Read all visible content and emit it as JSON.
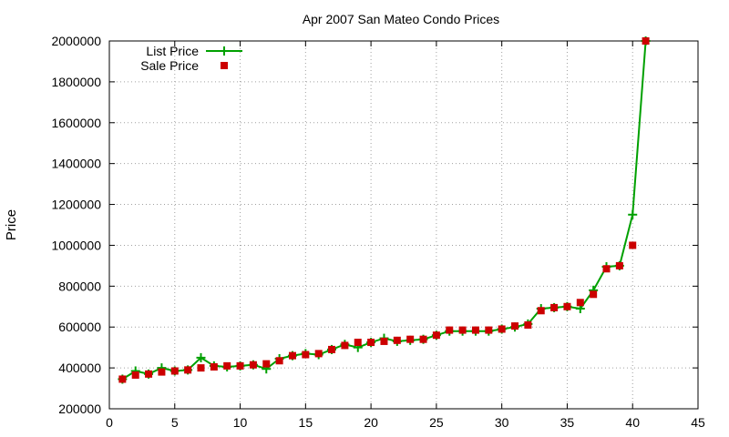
{
  "chart_data": {
    "type": "line",
    "title": "Apr 2007 San Mateo Condo Prices",
    "xlabel": "",
    "ylabel": "Price",
    "xlim": [
      0,
      45
    ],
    "ylim": [
      200000,
      2000000
    ],
    "x_ticks": [
      0,
      5,
      10,
      15,
      20,
      25,
      30,
      35,
      40,
      45
    ],
    "y_ticks": [
      200000,
      400000,
      600000,
      800000,
      1000000,
      1200000,
      1400000,
      1600000,
      1800000,
      2000000
    ],
    "grid": true,
    "legend_position": "top-left",
    "series": [
      {
        "name": "List Price",
        "style": "line-with-plus-markers",
        "color": "#00a000",
        "points": [
          [
            1,
            345000
          ],
          [
            2,
            385000
          ],
          [
            3,
            370000
          ],
          [
            4,
            400000
          ],
          [
            5,
            385000
          ],
          [
            6,
            390000
          ],
          [
            7,
            450000
          ],
          [
            8,
            410000
          ],
          [
            9,
            405000
          ],
          [
            10,
            410000
          ],
          [
            11,
            415000
          ],
          [
            12,
            395000
          ],
          [
            13,
            445000
          ],
          [
            14,
            460000
          ],
          [
            15,
            470000
          ],
          [
            16,
            465000
          ],
          [
            17,
            490000
          ],
          [
            18,
            515000
          ],
          [
            19,
            500000
          ],
          [
            20,
            525000
          ],
          [
            21,
            545000
          ],
          [
            22,
            530000
          ],
          [
            23,
            535000
          ],
          [
            24,
            540000
          ],
          [
            25,
            560000
          ],
          [
            26,
            580000
          ],
          [
            27,
            580000
          ],
          [
            28,
            580000
          ],
          [
            29,
            580000
          ],
          [
            30,
            590000
          ],
          [
            31,
            600000
          ],
          [
            32,
            615000
          ],
          [
            33,
            690000
          ],
          [
            34,
            695000
          ],
          [
            35,
            700000
          ],
          [
            36,
            690000
          ],
          [
            37,
            780000
          ],
          [
            38,
            895000
          ],
          [
            39,
            900000
          ],
          [
            40,
            1150000
          ],
          [
            41,
            2000000
          ]
        ]
      },
      {
        "name": "Sale Price",
        "style": "square-markers",
        "color": "#cc0000",
        "points": [
          [
            1,
            345000
          ],
          [
            2,
            365000
          ],
          [
            3,
            370000
          ],
          [
            4,
            380000
          ],
          [
            5,
            385000
          ],
          [
            6,
            390000
          ],
          [
            7,
            400000
          ],
          [
            8,
            405000
          ],
          [
            9,
            410000
          ],
          [
            10,
            410000
          ],
          [
            11,
            415000
          ],
          [
            12,
            420000
          ],
          [
            13,
            435000
          ],
          [
            14,
            460000
          ],
          [
            15,
            465000
          ],
          [
            16,
            470000
          ],
          [
            17,
            490000
          ],
          [
            18,
            510000
          ],
          [
            19,
            525000
          ],
          [
            20,
            525000
          ],
          [
            21,
            530000
          ],
          [
            22,
            535000
          ],
          [
            23,
            540000
          ],
          [
            24,
            540000
          ],
          [
            25,
            560000
          ],
          [
            26,
            585000
          ],
          [
            27,
            585000
          ],
          [
            28,
            585000
          ],
          [
            29,
            585000
          ],
          [
            30,
            590000
          ],
          [
            31,
            605000
          ],
          [
            32,
            610000
          ],
          [
            33,
            680000
          ],
          [
            34,
            695000
          ],
          [
            35,
            700000
          ],
          [
            36,
            720000
          ],
          [
            37,
            760000
          ],
          [
            38,
            885000
          ],
          [
            39,
            900000
          ],
          [
            40,
            1000000
          ],
          [
            41,
            2000000
          ]
        ]
      }
    ]
  }
}
